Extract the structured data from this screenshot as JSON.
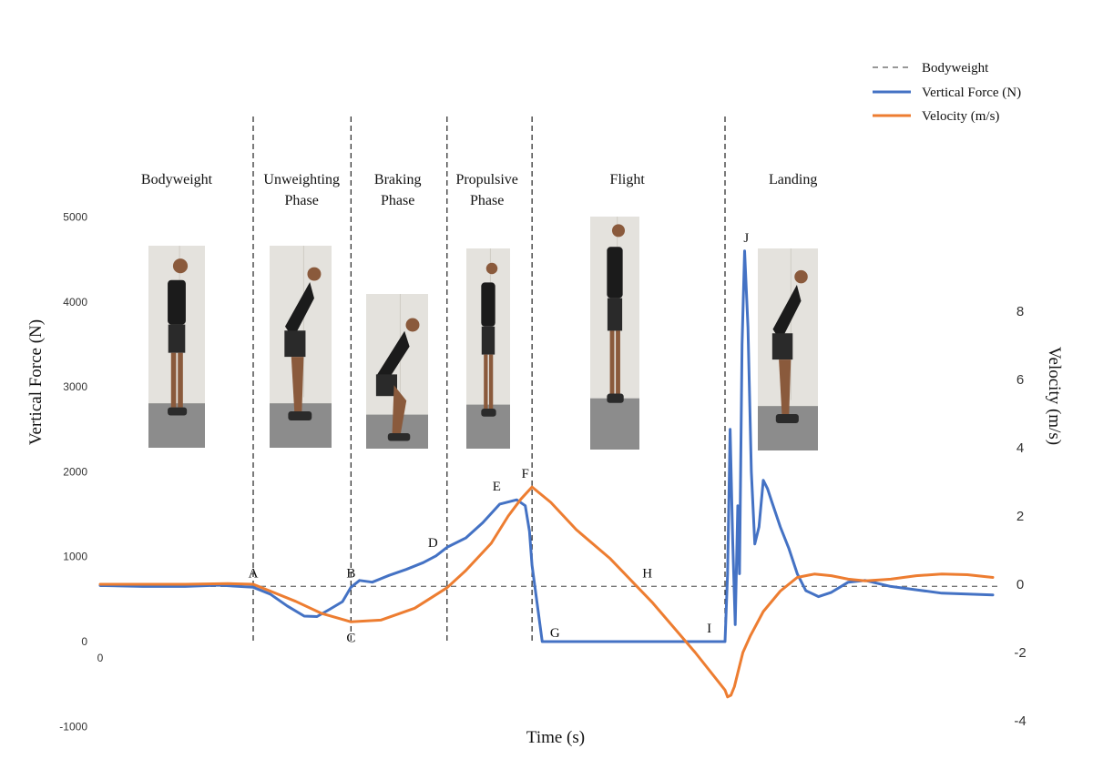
{
  "chart_data": {
    "type": "line",
    "xlabel": "Time (s)",
    "ylabel_left": "Vertical Force (N)",
    "ylabel_right": "Velocity  (m/s)",
    "ylim_left": [
      -1000,
      5000
    ],
    "ylim_right": [
      -4,
      8
    ],
    "x_range": [
      0,
      10.5
    ],
    "left_ticks": [
      "5000",
      "4000",
      "3000",
      "2000",
      "1000",
      "0",
      "-1000"
    ],
    "left_tick_values": [
      5000,
      4000,
      3000,
      2000,
      1000,
      0,
      -1000
    ],
    "right_ticks": [
      "8",
      "6",
      "4",
      "2",
      "0",
      "-2",
      "-4"
    ],
    "right_tick_values": [
      8,
      6,
      4,
      2,
      0,
      -2,
      -4
    ],
    "x_tick_label": "0",
    "grid": false,
    "legend_position": "top-right",
    "legend": [
      {
        "label": "Bodyweight",
        "style": "dashed",
        "color": "#777777"
      },
      {
        "label": "Vertical Force (N)",
        "style": "solid",
        "color": "#4472C4"
      },
      {
        "label": "Velocity  (m/s)",
        "style": "solid",
        "color": "#ED7D31"
      }
    ],
    "bodyweight_value": 650,
    "phase_boundaries": [
      1.8,
      2.95,
      4.08,
      5.08,
      7.35
    ],
    "phases": [
      {
        "lines": [
          "Bodyweight"
        ],
        "x": 0.9
      },
      {
        "lines": [
          "Unweighting",
          "Phase"
        ],
        "x": 2.37
      },
      {
        "lines": [
          "Braking",
          "Phase"
        ],
        "x": 3.5
      },
      {
        "lines": [
          "Propulsive",
          "Phase"
        ],
        "x": 4.55
      },
      {
        "lines": [
          "Flight"
        ],
        "x": 6.2
      },
      {
        "lines": [
          "Landing"
        ],
        "x": 8.15
      }
    ],
    "series": [
      {
        "name": "Vertical Force (N)",
        "axis": "left",
        "color": "#4472C4",
        "x": [
          0,
          0.5,
          1.0,
          1.4,
          1.8,
          2.0,
          2.2,
          2.4,
          2.55,
          2.7,
          2.85,
          2.95,
          3.05,
          3.2,
          3.4,
          3.6,
          3.8,
          3.95,
          4.08,
          4.3,
          4.5,
          4.7,
          4.9,
          5.0,
          5.05,
          5.08,
          5.2,
          5.5,
          6.0,
          6.5,
          7.0,
          7.3,
          7.35,
          7.38,
          7.41,
          7.44,
          7.47,
          7.5,
          7.52,
          7.55,
          7.58,
          7.62,
          7.66,
          7.7,
          7.75,
          7.8,
          7.85,
          7.9,
          8.0,
          8.1,
          8.2,
          8.3,
          8.45,
          8.6,
          8.8,
          9.0,
          9.3,
          9.6,
          9.9,
          10.2,
          10.5
        ],
        "values": [
          660,
          650,
          650,
          665,
          640,
          560,
          420,
          300,
          295,
          380,
          470,
          640,
          720,
          700,
          780,
          850,
          930,
          1010,
          1110,
          1220,
          1400,
          1620,
          1670,
          1600,
          1300,
          900,
          0,
          0,
          0,
          0,
          0,
          0,
          0,
          800,
          2500,
          1200,
          200,
          1600,
          800,
          3500,
          4600,
          3700,
          2000,
          1150,
          1350,
          1900,
          1800,
          1650,
          1350,
          1100,
          800,
          600,
          530,
          580,
          700,
          720,
          650,
          610,
          570,
          560,
          550
        ]
      },
      {
        "name": "Velocity  (m/s)",
        "axis": "right",
        "color": "#ED7D31",
        "x": [
          0,
          0.5,
          1.0,
          1.5,
          1.8,
          2.0,
          2.3,
          2.6,
          2.95,
          3.3,
          3.7,
          4.08,
          4.3,
          4.6,
          4.8,
          4.95,
          5.08,
          5.3,
          5.6,
          6.0,
          6.5,
          7.0,
          7.35,
          7.38,
          7.42,
          7.46,
          7.5,
          7.56,
          7.65,
          7.8,
          8.0,
          8.2,
          8.4,
          8.6,
          8.8,
          9.0,
          9.3,
          9.6,
          9.9,
          10.2,
          10.5
        ],
        "values": [
          0,
          0,
          0,
          0.02,
          0,
          -0.2,
          -0.5,
          -0.85,
          -1.1,
          -1.05,
          -0.7,
          -0.1,
          0.4,
          1.2,
          2.0,
          2.5,
          2.85,
          2.4,
          1.6,
          0.75,
          -0.55,
          -2.0,
          -3.1,
          -3.3,
          -3.25,
          -3.0,
          -2.6,
          -2.0,
          -1.5,
          -0.8,
          -0.2,
          0.2,
          0.3,
          0.25,
          0.15,
          0.1,
          0.15,
          0.25,
          0.3,
          0.28,
          0.2
        ]
      }
    ],
    "point_labels": [
      {
        "text": "A",
        "x": 1.8,
        "y": 650,
        "axis": "left",
        "pos": "above"
      },
      {
        "text": "B",
        "x": 2.95,
        "y": 650,
        "axis": "left",
        "pos": "above"
      },
      {
        "text": "C",
        "x": 2.95,
        "y": -1.1,
        "axis": "right",
        "pos": "below"
      },
      {
        "text": "D",
        "x": 4.0,
        "y": 1010,
        "axis": "left",
        "pos": "above-left"
      },
      {
        "text": "E",
        "x": 4.75,
        "y": 1670,
        "axis": "left",
        "pos": "above-left"
      },
      {
        "text": "F",
        "x": 5.0,
        "y": 2.85,
        "axis": "right",
        "pos": "above"
      },
      {
        "text": "G",
        "x": 5.2,
        "y": 0,
        "axis": "left",
        "pos": "right"
      },
      {
        "text": "H",
        "x": 6.35,
        "y": 650,
        "axis": "left",
        "pos": "above-right"
      },
      {
        "text": "I",
        "x": 7.25,
        "y": 0,
        "axis": "left",
        "pos": "above-left"
      },
      {
        "text": "J",
        "x": 7.6,
        "y": 4600,
        "axis": "left",
        "pos": "above"
      }
    ]
  }
}
